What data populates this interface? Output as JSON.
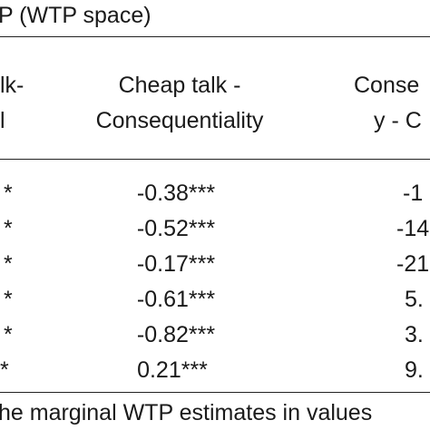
{
  "table": {
    "caption_fragment": "P (WTP space)",
    "headers": {
      "col_left": [
        "lk-",
        "l"
      ],
      "col_mid": [
        "Cheap talk -",
        "Consequentiality"
      ],
      "col_right": [
        "Conse",
        "y - C"
      ]
    },
    "rows": [
      {
        "left": "*",
        "mid": "-0.38***",
        "right": "-1"
      },
      {
        "left": "*",
        "mid": "-0.52***",
        "right": "-14"
      },
      {
        "left": "*",
        "mid": "-0.17***",
        "right": "-21"
      },
      {
        "left": "*",
        "mid": "-0.61***",
        "right": "5."
      },
      {
        "left": "*",
        "mid": "-0.82***",
        "right": "3."
      },
      {
        "left": "*",
        "mid": "0.21***",
        "right": "9."
      }
    ],
    "footnote_fragment": "he marginal WTP estimates in values"
  }
}
